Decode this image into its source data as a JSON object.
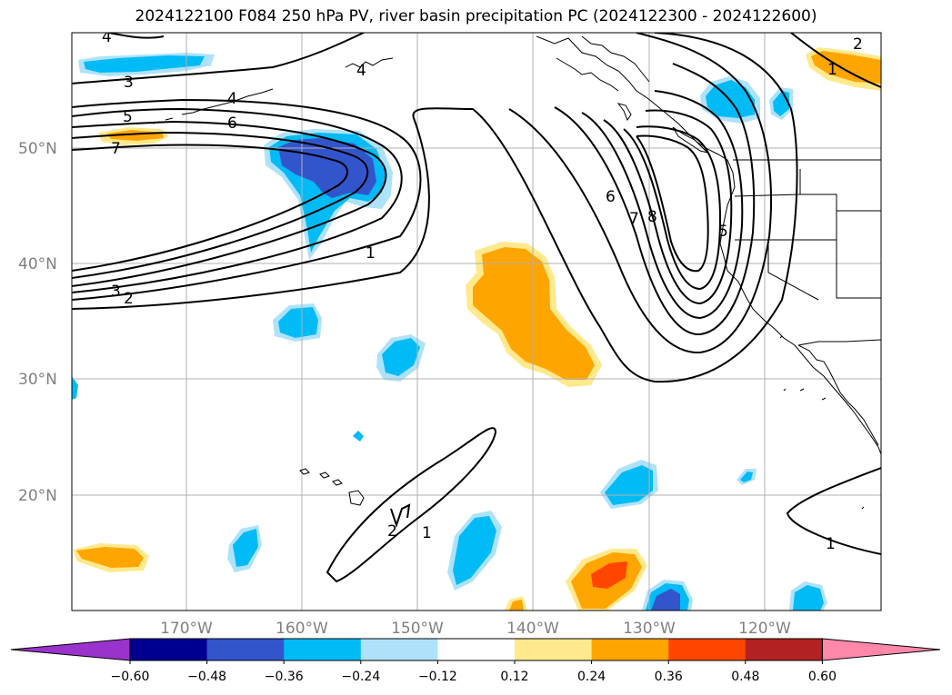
{
  "title": "2024122100 F084 250 hPa PV, river basin precipitation PC (2024122300 - 2024122600)",
  "lat_labels": [
    "50°N",
    "40°N",
    "30°N",
    "20°N"
  ],
  "lon_labels": [
    "170°W",
    "160°W",
    "150°W",
    "140°W",
    "130°W",
    "120°W"
  ],
  "contour_labels": [
    "4",
    "3",
    "5",
    "4",
    "6",
    "7",
    "4",
    "1",
    "3",
    "2",
    "6",
    "7",
    "8",
    "5",
    "2",
    "1",
    "2",
    "1",
    "1",
    "1"
  ],
  "colorbar": {
    "ticks": [
      "−0.60",
      "−0.48",
      "−0.36",
      "−0.24",
      "−0.12",
      "0.12",
      "0.24",
      "0.36",
      "0.48",
      "0.60"
    ],
    "colors": [
      "#9933cc",
      "#000090",
      "#3355cc",
      "#00bbf5",
      "#aee2fa",
      "#ffffff",
      "#ffe98c",
      "#ffa500",
      "#ff4500",
      "#b22222",
      "#ff88aa"
    ]
  },
  "colors": {
    "neg_strong": "#3355cc",
    "neg_mid": "#00bbf5",
    "neg_weak": "#aee2fa",
    "pos_weak": "#ffe98c",
    "pos_mid": "#ffa500",
    "pos_strong": "#ff4500",
    "grid": "#b0b0b0"
  }
}
